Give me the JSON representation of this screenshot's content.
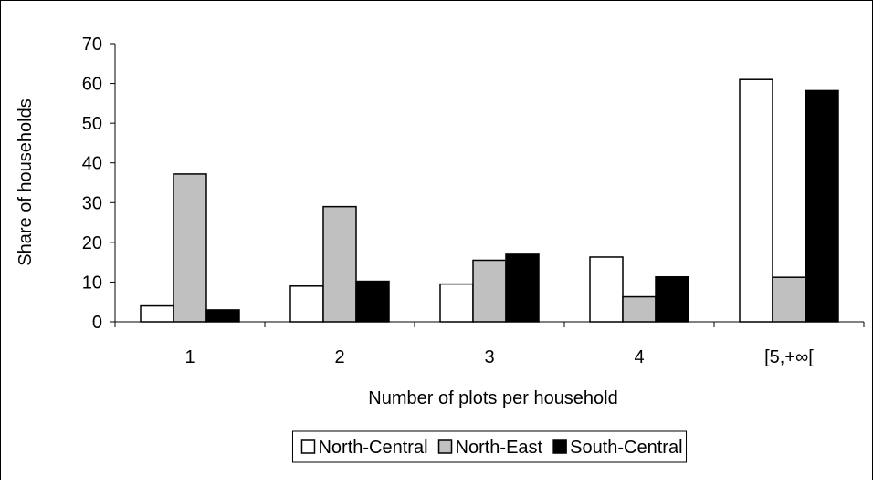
{
  "chart_data": {
    "type": "bar",
    "title": "",
    "xlabel": "Number of plots per household",
    "ylabel": "Share of households",
    "categories": [
      "1",
      "2",
      "3",
      "4",
      "[5,+∞["
    ],
    "ylim": [
      0,
      70
    ],
    "yticks": [
      0,
      10,
      20,
      30,
      40,
      50,
      60,
      70
    ],
    "grid": false,
    "legend_position": "bottom",
    "series": [
      {
        "name": "North-Central",
        "color": "#ffffff",
        "values": [
          4.0,
          9.0,
          9.5,
          16.3,
          61.0
        ]
      },
      {
        "name": "North-East",
        "color": "#c0c0c0",
        "values": [
          37.2,
          29.0,
          15.5,
          6.3,
          11.2
        ]
      },
      {
        "name": "South-Central",
        "color": "#000000",
        "values": [
          3.0,
          10.2,
          17.0,
          11.3,
          58.2
        ]
      }
    ]
  }
}
